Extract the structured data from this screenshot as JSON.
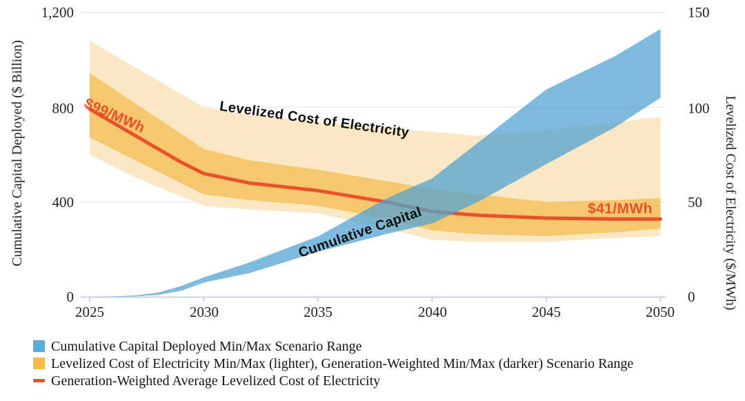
{
  "figure": {
    "left_axis": {
      "title": "Cumulative Capital Deployed ($ Billion)",
      "ticks": [
        "1,200",
        "800",
        "400",
        "0"
      ]
    },
    "right_axis": {
      "title": "Levelized Cost of Electricity ($/MWh)",
      "ticks": [
        "150",
        "100",
        "50",
        "0"
      ]
    },
    "x_axis": {
      "ticks": [
        "2025",
        "2030",
        "2035",
        "2040",
        "2045",
        "2050"
      ]
    },
    "annotations": {
      "start_price": "$99/MWh",
      "end_price": "$41/MWh",
      "lcoe_label": "Levelized Cost of Electricity",
      "capital_label": "Cumulative Capital"
    },
    "legend": [
      {
        "swatch": "capital-range-swatch",
        "label": "Cumulative Capital Deployed Min/Max Scenario Range"
      },
      {
        "swatch": "lcoe-range-swatch",
        "label": "Levelized Cost of Electricity Min/Max (lighter), Generation-Weighted Min/Max (darker) Scenario Range"
      },
      {
        "swatch": "avg-line-swatch",
        "label": "Generation-Weighted Average Levelized Cost of Electricity"
      }
    ]
  },
  "colors": {
    "capital_band": "#51a3d1",
    "lcoe_light": "#fae7c4",
    "lcoe_dark": "#f6c76d",
    "avg_line": "#e8512b",
    "legend_blue": "#58aedb",
    "legend_orange": "#f6ba45",
    "gridline": "#e4e4e6",
    "axis_line": "#b7c6e4",
    "text": "#232323"
  },
  "chart_data": {
    "type": "area",
    "title": "",
    "xlabel": "",
    "ylabel_left": "Cumulative Capital Deployed ($ Billion)",
    "ylabel_right": "Levelized Cost of Electricity ($/MWh)",
    "xlim": [
      2025,
      2050
    ],
    "left_ylim": [
      0,
      1200
    ],
    "right_ylim": [
      0,
      150
    ],
    "grid": "horizontal",
    "legend_position": "bottom-left",
    "x": [
      2025,
      2026,
      2027,
      2028,
      2029,
      2030,
      2032,
      2035,
      2038,
      2040,
      2042,
      2045,
      2048,
      2050
    ],
    "series": [
      {
        "id": "capital_min",
        "name": "Cumulative Capital Deployed Min ($ Billion)",
        "axis": "left",
        "values": [
          0,
          0,
          2,
          8,
          25,
          60,
          100,
          190,
          265,
          310,
          400,
          560,
          715,
          840
        ]
      },
      {
        "id": "capital_max",
        "name": "Cumulative Capital Deployed Max ($ Billion)",
        "axis": "left",
        "values": [
          0,
          2,
          6,
          18,
          45,
          82,
          145,
          255,
          415,
          500,
          650,
          875,
          1015,
          1130
        ]
      },
      {
        "id": "lcoe_range_min",
        "name": "Levelized Cost of Electricity Min, lighter ($/MWh)",
        "axis": "right",
        "values": [
          75,
          69,
          63,
          58,
          53,
          48,
          46,
          44,
          36,
          30,
          29,
          29,
          31,
          32
        ]
      },
      {
        "id": "lcoe_range_max",
        "name": "Levelized Cost of Electricity Max, lighter ($/MWh)",
        "axis": "right",
        "values": [
          135,
          128,
          121,
          114,
          107,
          100,
          96,
          92,
          89,
          87,
          85,
          88,
          92,
          95
        ]
      },
      {
        "id": "gw_range_min",
        "name": "Generation-Weighted Min, darker ($/MWh)",
        "axis": "right",
        "values": [
          84,
          78,
          72,
          66,
          60,
          54,
          51,
          48,
          41,
          35,
          33,
          32,
          34,
          36
        ]
      },
      {
        "id": "gw_range_max",
        "name": "Generation-Weighted Max, darker ($/MWh)",
        "axis": "right",
        "values": [
          118,
          110,
          102,
          94,
          86,
          78,
          72,
          67,
          61,
          57,
          54,
          50,
          51,
          52
        ]
      },
      {
        "id": "gw_avg",
        "name": "Generation-Weighted Average Levelized Cost of Electricity ($/MWh)",
        "axis": "right",
        "values": [
          99,
          92,
          85,
          78,
          71,
          65,
          60,
          56,
          50,
          45,
          43,
          41.5,
          41,
          41
        ]
      }
    ],
    "callouts": {
      "2025_avg": "$99/MWh",
      "2050_avg": "$41/MWh"
    }
  }
}
